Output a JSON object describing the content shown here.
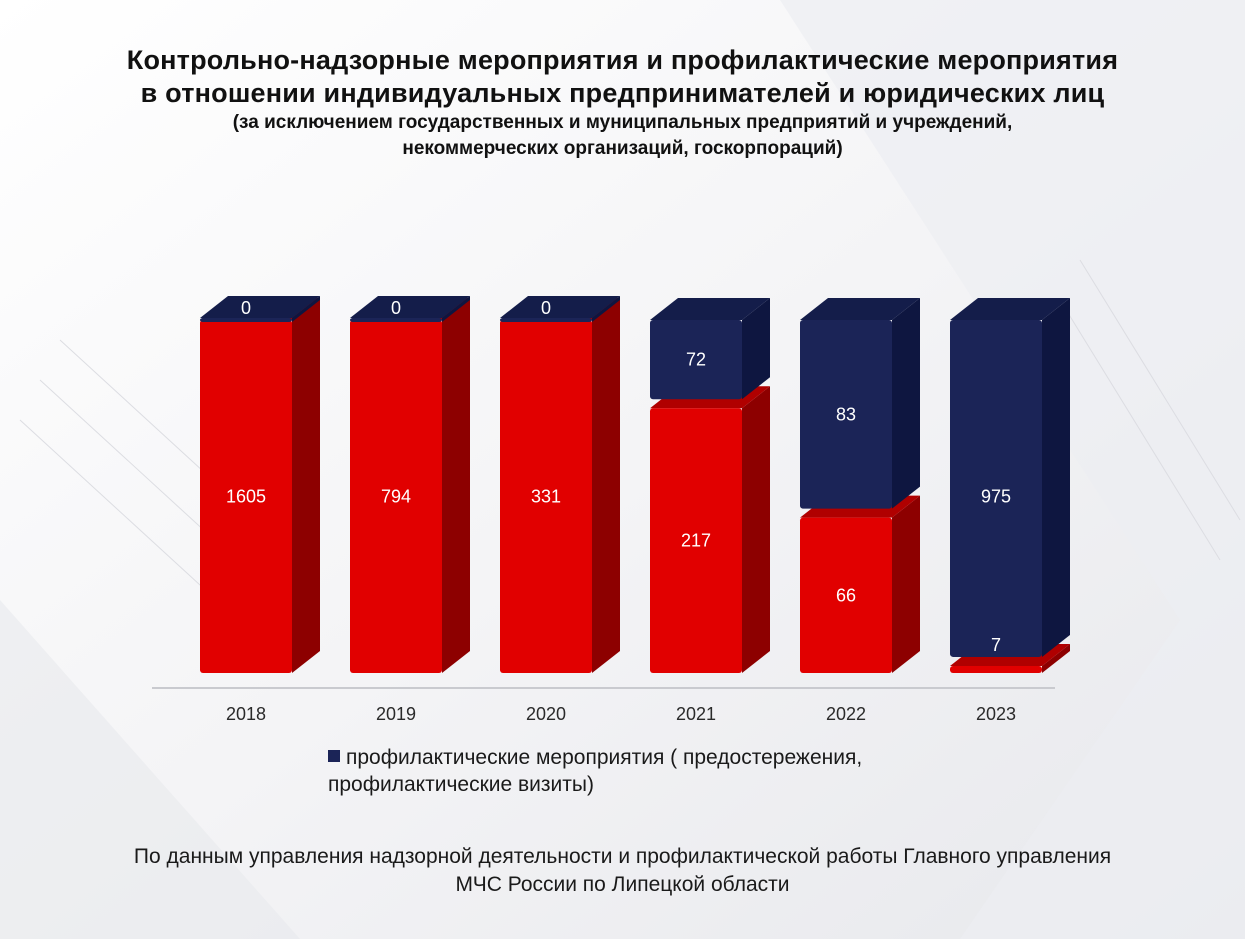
{
  "header": {
    "title_line1": "Контрольно-надзорные мероприятия и профилактические мероприятия",
    "title_line2": "в отношении индивидуальных предпринимателей и юридических лиц",
    "subtitle_line1": "(за исключением государственных и муниципальных предприятий и учреждений,",
    "subtitle_line2": "некоммерческих организаций, госкорпораций)"
  },
  "legend": {
    "label_line1": "профилактические мероприятия ( предостережения,",
    "label_line2": "профилактические визиты)"
  },
  "source": {
    "line1": "По данным управления надзорной деятельности и профилактической работы Главного управления",
    "line2": "МЧС России по Липецкой области"
  },
  "colors": {
    "control": "#e10000",
    "control_side": "#8d0000",
    "control_top": "#b00000",
    "prevention": "#1b2457",
    "prevention_side": "#0e1640",
    "prevention_top": "#141d4a"
  },
  "chart_data": {
    "type": "bar",
    "stacked": true,
    "three_d": true,
    "normalized": true,
    "categories": [
      "2018",
      "2019",
      "2020",
      "2021",
      "2022",
      "2023"
    ],
    "series": [
      {
        "key": "control",
        "values": [
          1605,
          794,
          331,
          217,
          66,
          7
        ]
      },
      {
        "name": "профилактические мероприятия ( предостережения, профилактические визиты)",
        "key": "prevention",
        "values": [
          0,
          0,
          0,
          72,
          83,
          975
        ]
      }
    ],
    "stack_share_bottom": [
      1.0,
      1.0,
      1.0,
      0.75,
      0.44,
      0.02
    ],
    "legend_position": "bottom",
    "grid": false
  }
}
